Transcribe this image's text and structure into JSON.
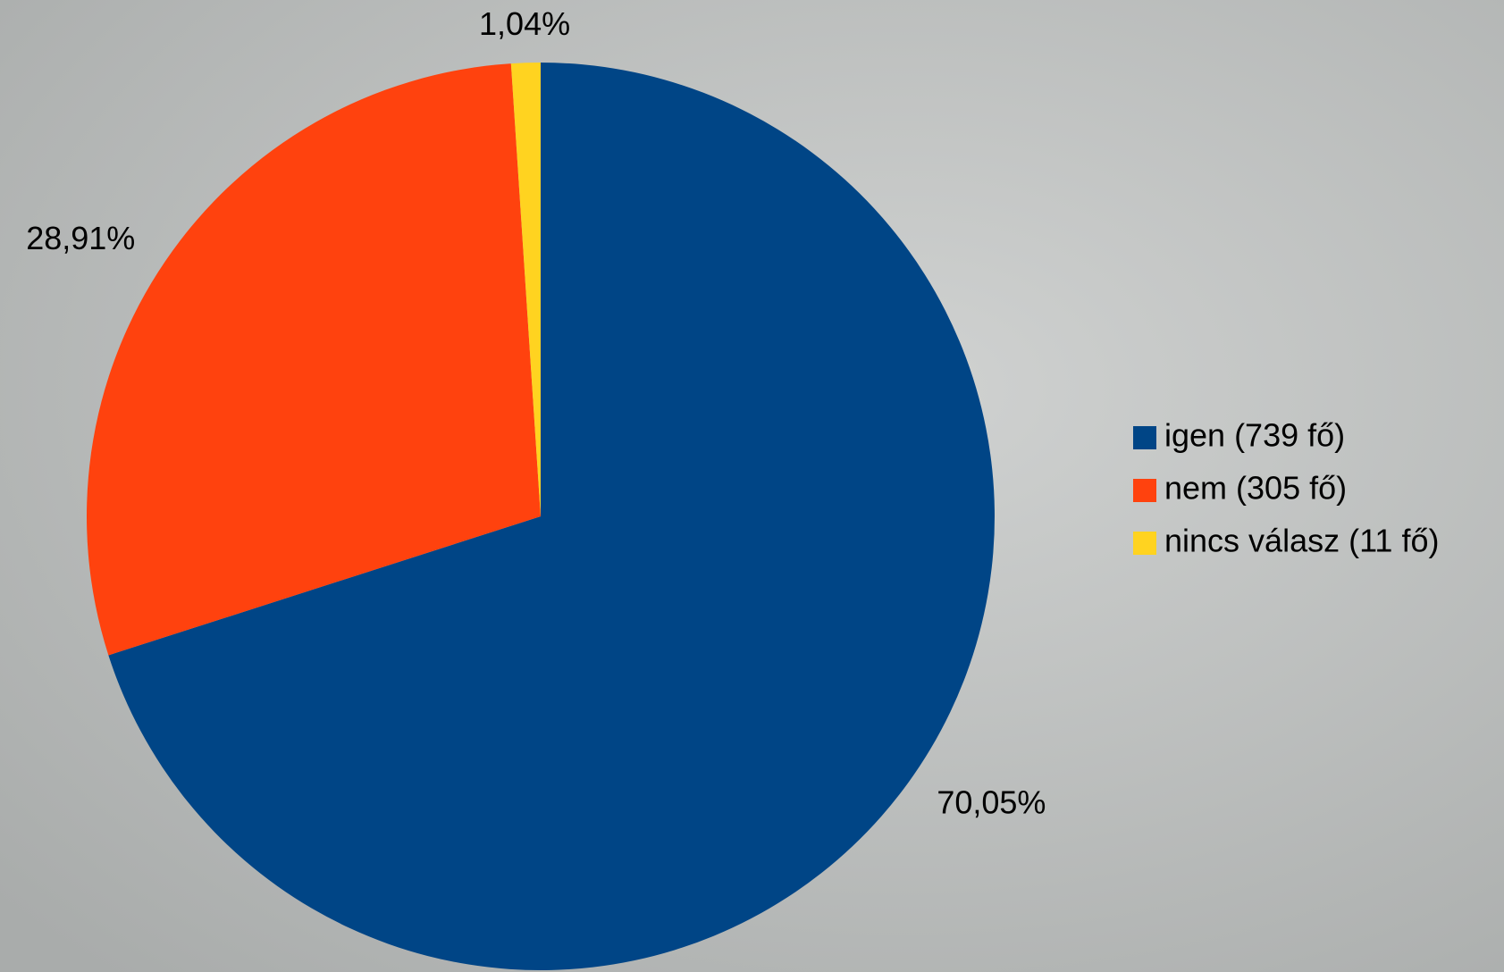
{
  "chart_data": {
    "type": "pie",
    "categories": [
      "igen (739 fő)",
      "nem (305 fő)",
      "nincs válasz (11 fő)"
    ],
    "values": [
      70.05,
      28.91,
      1.04
    ],
    "value_labels": [
      "70,05%",
      "28,91%",
      "1,04%"
    ],
    "colors": [
      "#004586",
      "#ff420e",
      "#ffd320"
    ],
    "legend": "right"
  }
}
